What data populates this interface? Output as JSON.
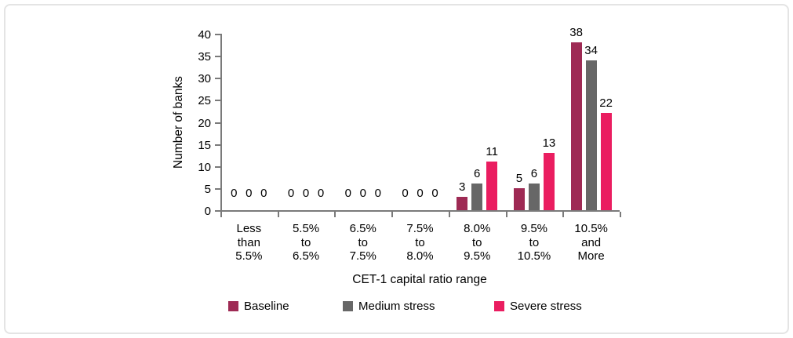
{
  "chart_data": {
    "type": "bar",
    "title": "",
    "xlabel": "CET-1 capital ratio range",
    "ylabel": "Number of banks",
    "ylim": [
      0,
      40
    ],
    "ytick_step": 5,
    "grid": false,
    "legend_position": "bottom",
    "categories": [
      [
        "Less",
        "than",
        "5.5%"
      ],
      [
        "5.5%",
        "to",
        "6.5%"
      ],
      [
        "6.5%",
        "to",
        "7.5%"
      ],
      [
        "7.5%",
        "to",
        "8.0%"
      ],
      [
        "8.0%",
        "to",
        "9.5%"
      ],
      [
        "9.5%",
        "to",
        "10.5%"
      ],
      [
        "10.5%",
        "and",
        "More"
      ]
    ],
    "series": [
      {
        "name": "Baseline",
        "color": "#9e2a54",
        "values": [
          0,
          0,
          0,
          0,
          3,
          5,
          38
        ]
      },
      {
        "name": "Medium stress",
        "color": "#676767",
        "values": [
          0,
          0,
          0,
          0,
          6,
          6,
          34
        ]
      },
      {
        "name": "Severe stress",
        "color": "#ea1d60",
        "values": [
          0,
          0,
          0,
          0,
          11,
          13,
          22
        ]
      }
    ],
    "axis_color": "#7a7a7a",
    "text_color": "#000000"
  }
}
